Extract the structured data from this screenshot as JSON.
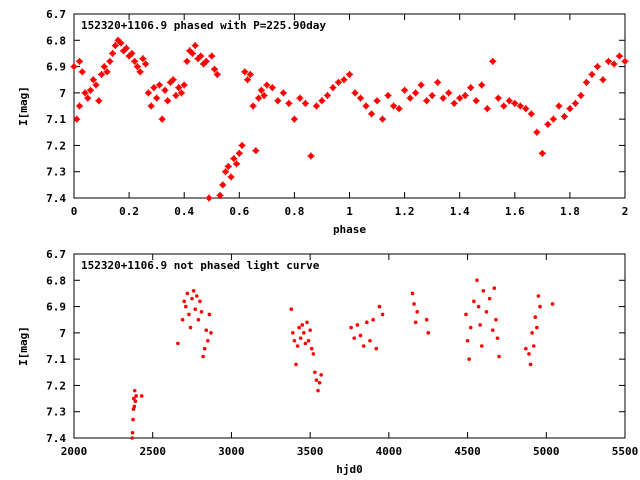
{
  "chart_data": [
    {
      "type": "scatter",
      "title": "152320+1106.9 phased with P=225.90day",
      "xlabel": "phase",
      "ylabel": "I[mag]",
      "xlim": [
        0,
        2
      ],
      "ylim": [
        7.4,
        6.7
      ],
      "y_reversed": true,
      "x_ticks": [
        "0",
        "0.2",
        "0.4",
        "0.6",
        "0.8",
        "1",
        "1.2",
        "1.4",
        "1.6",
        "1.8",
        "2"
      ],
      "y_ticks": [
        "6.7",
        "6.8",
        "6.9",
        "7",
        "7.1",
        "7.2",
        "7.3",
        "7.4"
      ],
      "grid": false,
      "marker_color": "#ff0000",
      "marker": "filled-circle",
      "series": [
        {
          "x": [
            0.0,
            0.01,
            0.02,
            0.02,
            0.03,
            0.04,
            0.05,
            0.06,
            0.07,
            0.08,
            0.09,
            0.1,
            0.11,
            0.12,
            0.13,
            0.14,
            0.15,
            0.16,
            0.17,
            0.18,
            0.19,
            0.2,
            0.21,
            0.22,
            0.23,
            0.24,
            0.25,
            0.26,
            0.27,
            0.28,
            0.29,
            0.3,
            0.31,
            0.32,
            0.33,
            0.34,
            0.35,
            0.36,
            0.37,
            0.38,
            0.39,
            0.4,
            0.41,
            0.42,
            0.43,
            0.44,
            0.45,
            0.46,
            0.47,
            0.48,
            0.49,
            0.5,
            0.51,
            0.52,
            0.53,
            0.54,
            0.55,
            0.56,
            0.57,
            0.58,
            0.59,
            0.6,
            0.61,
            0.62,
            0.63,
            0.64,
            0.65,
            0.66,
            0.67,
            0.68,
            0.69,
            0.7,
            0.72,
            0.74,
            0.76,
            0.78,
            0.8,
            0.82,
            0.84,
            0.86,
            0.88,
            0.9,
            0.92,
            0.94,
            0.96,
            0.98,
            1.0,
            1.02,
            1.04,
            1.06,
            1.08,
            1.1,
            1.12,
            1.14,
            1.16,
            1.18,
            1.2,
            1.22,
            1.24,
            1.26,
            1.28,
            1.3,
            1.32,
            1.34,
            1.36,
            1.38,
            1.4,
            1.42,
            1.44,
            1.46,
            1.48,
            1.5,
            1.52,
            1.54,
            1.56,
            1.58,
            1.6,
            1.62,
            1.64,
            1.66,
            1.68,
            1.7,
            1.72,
            1.74,
            1.76,
            1.78,
            1.8,
            1.82,
            1.84,
            1.86,
            1.88,
            1.9,
            1.92,
            1.94,
            1.96,
            1.98,
            2.0
          ],
          "y": [
            6.9,
            7.1,
            6.88,
            7.05,
            6.92,
            7.0,
            7.02,
            6.99,
            6.95,
            6.97,
            7.03,
            6.93,
            6.9,
            6.92,
            6.88,
            6.85,
            6.82,
            6.8,
            6.81,
            6.84,
            6.83,
            6.86,
            6.85,
            6.88,
            6.9,
            6.92,
            6.87,
            6.89,
            7.0,
            7.05,
            6.98,
            7.02,
            6.97,
            7.1,
            6.99,
            7.03,
            6.96,
            6.95,
            7.01,
            6.98,
            7.0,
            6.97,
            6.88,
            6.84,
            6.85,
            6.82,
            6.87,
            6.86,
            6.89,
            6.88,
            7.4,
            6.86,
            6.91,
            6.93,
            7.39,
            7.35,
            7.3,
            7.28,
            7.32,
            7.25,
            7.27,
            7.23,
            7.2,
            6.92,
            6.95,
            6.93,
            7.05,
            7.22,
            7.02,
            6.99,
            7.01,
            6.97,
            6.98,
            7.03,
            7.0,
            7.04,
            7.1,
            7.02,
            7.04,
            7.24,
            7.05,
            7.03,
            7.01,
            6.98,
            6.96,
            6.95,
            6.93,
            7.0,
            7.02,
            7.05,
            7.08,
            7.03,
            7.1,
            7.01,
            7.05,
            7.06,
            6.99,
            7.02,
            7.0,
            6.97,
            7.03,
            7.01,
            6.96,
            7.02,
            7.0,
            7.04,
            7.02,
            7.01,
            6.98,
            7.03,
            6.97,
            7.06,
            6.88,
            7.02,
            7.05,
            7.03,
            7.04,
            7.05,
            7.06,
            7.08,
            7.15,
            7.23,
            7.12,
            7.1,
            7.05,
            7.09,
            7.06,
            7.04,
            7.01,
            6.96,
            6.93,
            6.9,
            6.95,
            6.88,
            6.89,
            6.86,
            6.88
          ]
        }
      ]
    },
    {
      "type": "scatter",
      "title": "152320+1106.9 not phased light curve",
      "xlabel": "hjd0",
      "ylabel": "I[mag]",
      "xlim": [
        2000,
        5500
      ],
      "ylim": [
        7.4,
        6.7
      ],
      "y_reversed": true,
      "x_ticks": [
        "2000",
        "2500",
        "3000",
        "3500",
        "4000",
        "4500",
        "5000",
        "5500"
      ],
      "y_ticks": [
        "6.7",
        "6.8",
        "6.9",
        "7",
        "7.1",
        "7.2",
        "7.3",
        "7.4"
      ],
      "grid": false,
      "marker_color": "#ff0000",
      "marker": "dot",
      "series": [
        {
          "x": [
            2370,
            2372,
            2375,
            2378,
            2380,
            2383,
            2386,
            2390,
            2395,
            2430,
            2660,
            2690,
            2700,
            2710,
            2720,
            2730,
            2740,
            2750,
            2760,
            2770,
            2780,
            2790,
            2800,
            2810,
            2820,
            2830,
            2840,
            2850,
            2860,
            2870,
            3380,
            3390,
            3400,
            3410,
            3420,
            3430,
            3440,
            3450,
            3460,
            3470,
            3480,
            3490,
            3500,
            3510,
            3520,
            3530,
            3540,
            3550,
            3560,
            3570,
            3760,
            3780,
            3800,
            3820,
            3840,
            3860,
            3880,
            3900,
            3920,
            3940,
            3960,
            4150,
            4160,
            4170,
            4180,
            4240,
            4250,
            4490,
            4500,
            4510,
            4520,
            4540,
            4560,
            4570,
            4580,
            4590,
            4600,
            4620,
            4640,
            4660,
            4670,
            4680,
            4690,
            4700,
            4870,
            4890,
            4900,
            4910,
            4920,
            4930,
            4940,
            4950,
            4960,
            5040
          ],
          "y": [
            7.4,
            7.38,
            7.33,
            7.29,
            7.25,
            7.28,
            7.22,
            7.26,
            7.24,
            7.24,
            7.04,
            6.95,
            6.88,
            6.9,
            6.85,
            6.93,
            6.98,
            6.87,
            6.84,
            6.91,
            6.86,
            6.95,
            6.88,
            6.92,
            7.09,
            7.06,
            6.99,
            7.03,
            6.93,
            7.0,
            6.91,
            7.0,
            7.03,
            7.12,
            7.05,
            6.98,
            7.02,
            6.97,
            7.0,
            7.04,
            6.96,
            7.03,
            6.99,
            7.06,
            7.08,
            7.15,
            7.18,
            7.22,
            7.19,
            7.16,
            6.98,
            7.02,
            6.97,
            7.01,
            7.05,
            6.96,
            7.03,
            6.95,
            7.06,
            6.9,
            6.93,
            6.85,
            6.89,
            6.96,
            6.92,
            6.95,
            7.0,
            6.93,
            7.03,
            7.1,
            6.98,
            6.88,
            6.8,
            6.9,
            6.97,
            7.05,
            6.84,
            6.92,
            6.87,
            6.99,
            6.83,
            6.95,
            7.02,
            7.09,
            7.06,
            7.08,
            7.12,
            7.0,
            7.05,
            6.94,
            6.98,
            6.86,
            6.9,
            6.89
          ]
        }
      ]
    }
  ]
}
